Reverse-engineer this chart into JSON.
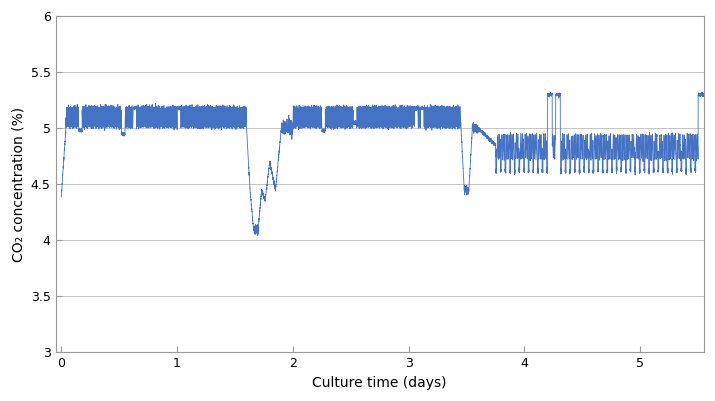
{
  "title": "",
  "xlabel": "Culture time (days)",
  "ylabel": "CO₂ concentration (%)",
  "xlim": [
    -0.05,
    5.55
  ],
  "ylim": [
    3,
    6
  ],
  "ytick_vals": [
    3,
    3.5,
    4,
    4.5,
    5,
    5.5,
    6
  ],
  "ytick_labels": [
    "3",
    "3.5",
    "4",
    "4.5",
    "5",
    "5.5",
    "6"
  ],
  "xtick_vals": [
    0,
    1,
    2,
    3,
    4,
    5
  ],
  "xtick_labels": [
    "0",
    "1",
    "2",
    "3",
    "4",
    "5"
  ],
  "line_color": "#4472C4",
  "line_width": 0.6,
  "background_color": "#ffffff",
  "grid_color": "#bbbbbb",
  "spine_color": "#999999",
  "seed": 42
}
